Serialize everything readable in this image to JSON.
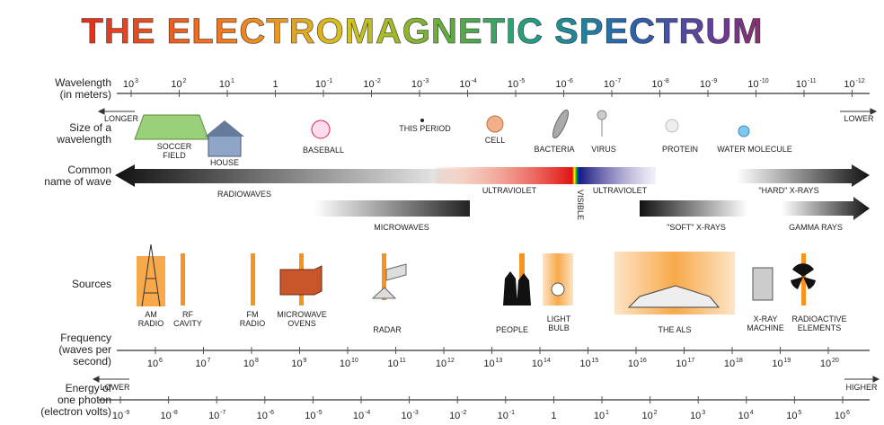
{
  "title": "THE ELECTROMAGNETIC SPECTRUM",
  "wavelength": {
    "label": [
      "Wavelength",
      "(in meters)"
    ],
    "ticks": [
      {
        "base": "10",
        "exp": "3"
      },
      {
        "base": "10",
        "exp": "2"
      },
      {
        "base": "10",
        "exp": "1"
      },
      {
        "base": "1"
      },
      {
        "base": "10",
        "exp": "-1"
      },
      {
        "base": "10",
        "exp": "-2"
      },
      {
        "base": "10",
        "exp": "-3"
      },
      {
        "base": "10",
        "exp": "-4"
      },
      {
        "base": "10",
        "exp": "-5"
      },
      {
        "base": "10",
        "exp": "-6"
      },
      {
        "base": "10",
        "exp": "-7"
      },
      {
        "base": "10",
        "exp": "-8"
      },
      {
        "base": "10",
        "exp": "-9"
      },
      {
        "base": "10",
        "exp": "-10"
      },
      {
        "base": "10",
        "exp": "-11"
      },
      {
        "base": "10",
        "exp": "-12"
      }
    ]
  },
  "size": {
    "label": [
      "Size of a",
      "wavelength"
    ],
    "longer": "LONGER",
    "lower": "LOWER",
    "items": [
      [
        "SOCCER",
        "FIELD"
      ],
      [
        "HOUSE"
      ],
      [
        "BASEBALL"
      ],
      [
        "THIS PERIOD"
      ],
      [
        "CELL"
      ],
      [
        "BACTERIA"
      ],
      [
        "VIRUS"
      ],
      [
        "PROTEIN"
      ],
      [
        "WATER MOLECULE"
      ]
    ]
  },
  "names": {
    "label": [
      "Common",
      "name of wave"
    ],
    "waves": [
      "RADIOWAVES",
      "MICROWAVES",
      "ULTRAVIOLET",
      "VISIBLE",
      "ULTRAVIOLET",
      "\"HARD\" X-RAYS",
      "\"SOFT\" X-RAYS",
      "GAMMA RAYS"
    ]
  },
  "sources": {
    "label": [
      "Sources"
    ],
    "items": [
      [
        "AM",
        "RADIO"
      ],
      [
        "RF",
        "CAVITY"
      ],
      [
        "FM",
        "RADIO"
      ],
      [
        "MICROWAVE",
        "OVENS"
      ],
      [
        "RADAR"
      ],
      [
        "PEOPLE"
      ],
      [
        "LIGHT",
        "BULB"
      ],
      [
        "THE ALS"
      ],
      [
        "X-RAY",
        "MACHINE"
      ],
      [
        "RADIOACTIVE",
        "ELEMENTS"
      ]
    ]
  },
  "frequency": {
    "label": [
      "Frequency",
      "(waves per",
      "second)"
    ],
    "ticks": [
      {
        "base": "10",
        "exp": "6"
      },
      {
        "base": "10",
        "exp": "7"
      },
      {
        "base": "10",
        "exp": "8"
      },
      {
        "base": "10",
        "exp": "9"
      },
      {
        "base": "10",
        "exp": "10"
      },
      {
        "base": "10",
        "exp": "11"
      },
      {
        "base": "10",
        "exp": "12"
      },
      {
        "base": "10",
        "exp": "13"
      },
      {
        "base": "10",
        "exp": "14"
      },
      {
        "base": "10",
        "exp": "15"
      },
      {
        "base": "10",
        "exp": "16"
      },
      {
        "base": "10",
        "exp": "17"
      },
      {
        "base": "10",
        "exp": "18"
      },
      {
        "base": "10",
        "exp": "19"
      },
      {
        "base": "10",
        "exp": "20"
      }
    ]
  },
  "energy": {
    "label": [
      "Energy of",
      "one photon",
      "(electron volts)"
    ],
    "lower": "LOWER",
    "higher": "HIGHER",
    "ticks": [
      {
        "base": "10",
        "exp": "-9"
      },
      {
        "base": "10",
        "exp": "-8"
      },
      {
        "base": "10",
        "exp": "-7"
      },
      {
        "base": "10",
        "exp": "-6"
      },
      {
        "base": "10",
        "exp": "-5"
      },
      {
        "base": "10",
        "exp": "-4"
      },
      {
        "base": "10",
        "exp": "-3"
      },
      {
        "base": "10",
        "exp": "-2"
      },
      {
        "base": "10",
        "exp": "-1"
      },
      {
        "base": "1"
      },
      {
        "base": "10",
        "exp": "1"
      },
      {
        "base": "10",
        "exp": "2"
      },
      {
        "base": "10",
        "exp": "3"
      },
      {
        "base": "10",
        "exp": "4"
      },
      {
        "base": "10",
        "exp": "5"
      },
      {
        "base": "10",
        "exp": "6"
      }
    ]
  }
}
